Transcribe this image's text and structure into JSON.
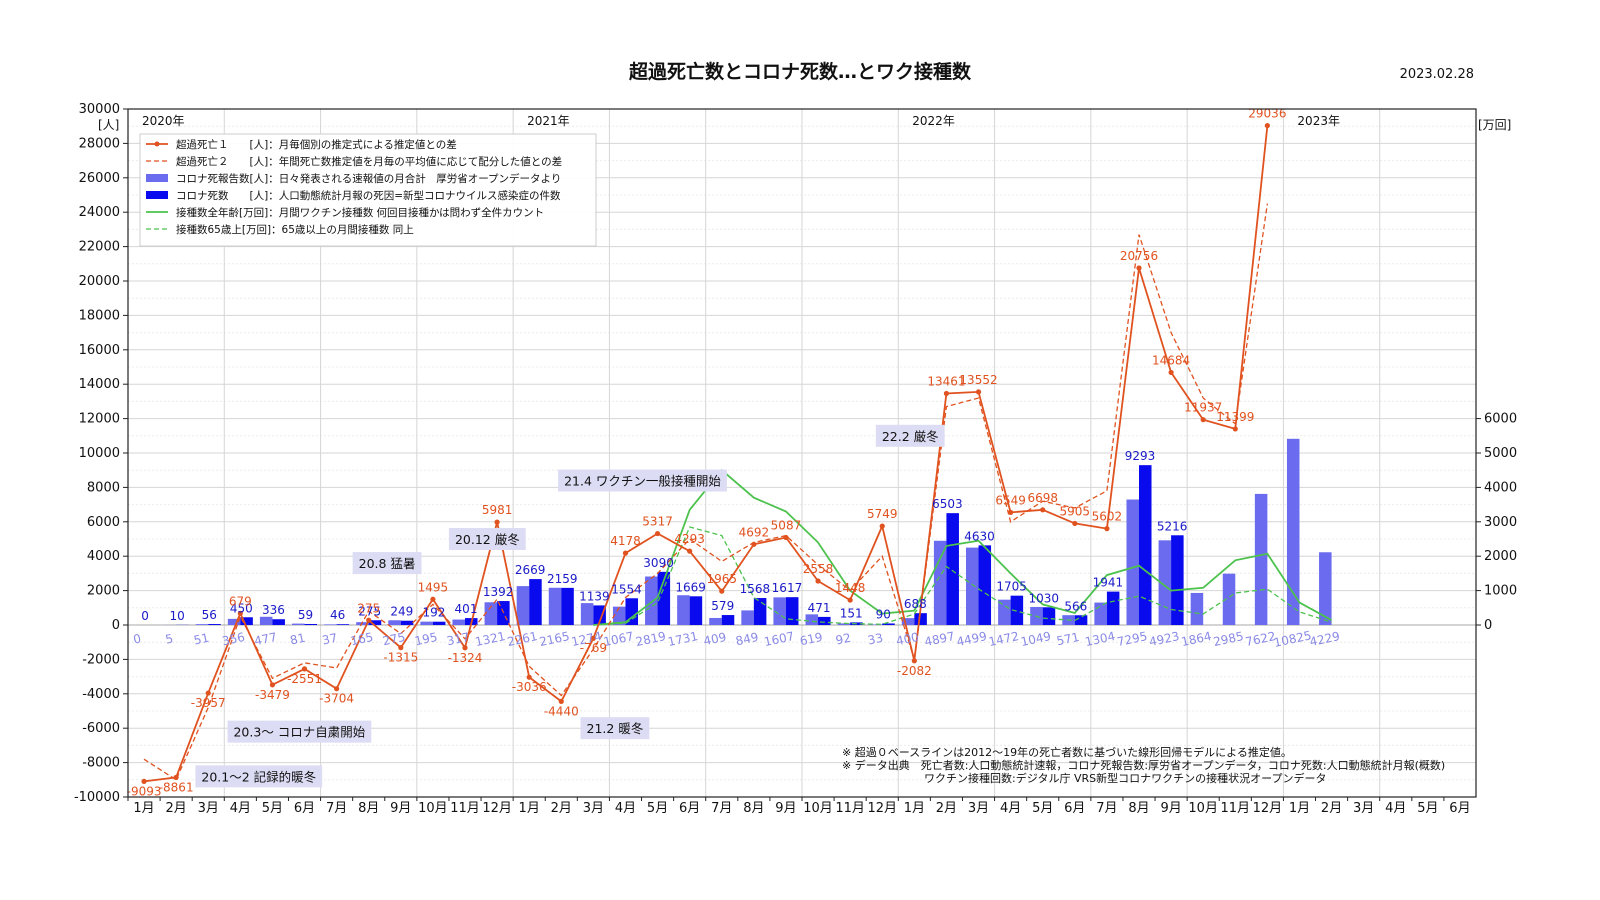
{
  "title": "超過死亡数とコロナ死数…とワク接種数",
  "date": "2023.02.28",
  "y_unit_left": "[人]",
  "y_unit_right": "[万回]",
  "years": [
    {
      "label": "2020年",
      "index": 0
    },
    {
      "label": "2021年",
      "index": 12
    },
    {
      "label": "2022年",
      "index": 24
    },
    {
      "label": "2023年",
      "index": 36
    }
  ],
  "chart_data": {
    "type": "bar",
    "categories": [
      "1月",
      "2月",
      "3月",
      "4月",
      "5月",
      "6月",
      "7月",
      "8月",
      "9月",
      "10月",
      "11月",
      "12月",
      "1月",
      "2月",
      "3月",
      "4月",
      "5月",
      "6月",
      "7月",
      "8月",
      "9月",
      "10月",
      "11月",
      "12月",
      "1月",
      "2月",
      "3月",
      "4月",
      "5月",
      "6月",
      "7月",
      "8月",
      "9月",
      "10月",
      "11月",
      "12月",
      "1月",
      "2月",
      "3月",
      "4月",
      "5月",
      "6月"
    ],
    "ylim": [
      -10000,
      30000
    ],
    "yticks": [
      -10000,
      -8000,
      -6000,
      -4000,
      -2000,
      0,
      2000,
      4000,
      6000,
      8000,
      10000,
      12000,
      14000,
      16000,
      18000,
      20000,
      22000,
      24000,
      26000,
      28000,
      30000
    ],
    "y2ticks": [
      0,
      1000,
      2000,
      3000,
      4000,
      5000,
      6000
    ],
    "grid": true,
    "legend_position": "top-left",
    "series": [
      {
        "name": "超過死亡１　　[人]：月毎個別の推定式による推定値との差",
        "type": "line",
        "axis": "left",
        "color": "#e0521f",
        "values": [
          -9093,
          -8861,
          -3957,
          679,
          -3479,
          -2551,
          -3704,
          275,
          -1315,
          1495,
          -1324,
          5981,
          -3036,
          -4440,
          -769,
          4178,
          5317,
          4293,
          1965,
          4692,
          5087,
          2558,
          1448,
          5749,
          -2082,
          13461,
          13552,
          6549,
          6698,
          5905,
          5602,
          20756,
          14684,
          11937,
          11399,
          29036,
          null,
          null,
          null,
          null,
          null,
          null
        ]
      },
      {
        "name": "超過死亡２　　[人]：年間死亡数推定値を月毎の平均値に応じて配分した値との差",
        "type": "line-dashed",
        "axis": "left",
        "color": "#e0521f",
        "values": [
          -7800,
          -9000,
          -4800,
          500,
          -3100,
          -2200,
          -2500,
          800,
          -500,
          1200,
          -800,
          1500,
          -2400,
          -4100,
          -1400,
          1600,
          3000,
          5000,
          3700,
          4800,
          5200,
          3500,
          2000,
          4000,
          -2000,
          12700,
          13200,
          6000,
          7200,
          6800,
          7800,
          22700,
          17000,
          13200,
          11700,
          24500,
          null,
          null,
          null,
          null,
          null,
          null
        ]
      },
      {
        "name": "コロナ死報告数[人]：日々発表される速報値の月合計　厚労省オープンデータより",
        "type": "bar",
        "axis": "left",
        "color": "#6b6bef",
        "values": [
          0,
          5,
          51,
          356,
          477,
          81,
          37,
          165,
          275,
          195,
          317,
          1321,
          2261,
          2165,
          1274,
          1067,
          2819,
          1731,
          409,
          849,
          1607,
          619,
          92,
          33,
          400,
          4897,
          4499,
          1472,
          1049,
          571,
          1304,
          7295,
          4923,
          1864,
          2985,
          7622,
          10825,
          4229,
          null,
          null,
          null,
          null
        ]
      },
      {
        "name": "コロナ死数　　[人]：人口動態統計月報の死因=新型コロナウイルス感染症の件数",
        "type": "bar",
        "axis": "left",
        "color": "#0a0aee",
        "values": [
          0,
          10,
          56,
          450,
          336,
          59,
          46,
          275,
          249,
          192,
          401,
          1392,
          2669,
          2159,
          1139,
          1554,
          3090,
          1669,
          579,
          1568,
          1617,
          471,
          151,
          90,
          688,
          6503,
          4630,
          1705,
          1030,
          566,
          1941,
          9293,
          5216,
          null,
          null,
          null,
          null,
          null,
          null,
          null,
          null,
          null
        ]
      },
      {
        "name": "接種数全年齢[万回]：月間ワクチン接種数 何回目接種かは問わず全件カウント",
        "type": "line",
        "axis": "right",
        "color": "#4cc24c",
        "values": [
          null,
          null,
          null,
          null,
          null,
          null,
          null,
          null,
          null,
          null,
          null,
          null,
          null,
          null,
          0,
          80,
          800,
          3350,
          4500,
          3700,
          3300,
          2400,
          1000,
          330,
          420,
          2300,
          2450,
          1500,
          600,
          350,
          1450,
          1720,
          1000,
          1080,
          1880,
          2070,
          650,
          140,
          null,
          null,
          null,
          null
        ]
      },
      {
        "name": "接種数65歳上[万回]：65歳以上の月間接種数 同上",
        "type": "line-dashed",
        "axis": "right",
        "color": "#4cc24c",
        "values": [
          null,
          null,
          null,
          null,
          null,
          null,
          null,
          null,
          null,
          null,
          null,
          null,
          null,
          null,
          0,
          50,
          650,
          2850,
          2600,
          800,
          180,
          90,
          40,
          20,
          320,
          1700,
          1050,
          450,
          200,
          130,
          650,
          840,
          450,
          320,
          930,
          1040,
          380,
          80,
          null,
          null,
          null,
          null
        ]
      }
    ],
    "annotations": [
      {
        "text": "20.1〜2 記録的暖冬",
        "x": 1.6,
        "y": -8800
      },
      {
        "text": "20.3〜 コロナ自粛開始",
        "x": 2.6,
        "y": -6200
      },
      {
        "text": "20.8 猛暑",
        "x": 6.5,
        "y": 3600
      },
      {
        "text": "20.12 厳冬",
        "x": 9.5,
        "y": 5000
      },
      {
        "text": "21.2 暖冬",
        "x": 13.6,
        "y": -6000
      },
      {
        "text": "21.4 ワクチン一般接種開始",
        "x": 12.9,
        "y": 8400
      },
      {
        "text": "22.2 厳冬",
        "x": 22.8,
        "y": 11000
      }
    ]
  },
  "notes": [
    "※ 超過０ベースラインは2012〜19年の死亡者数に基づいた線形回帰モデルによる推定値。",
    "※ データ出典　死亡者数:人口動態統計速報，コロナ死報告数:厚労省オープンデータ，コロナ死数:人口動態統計月報(概数)",
    "ワクチン接種回数:デジタル庁 VRS新型コロナワクチンの接種状況オープンデータ"
  ]
}
